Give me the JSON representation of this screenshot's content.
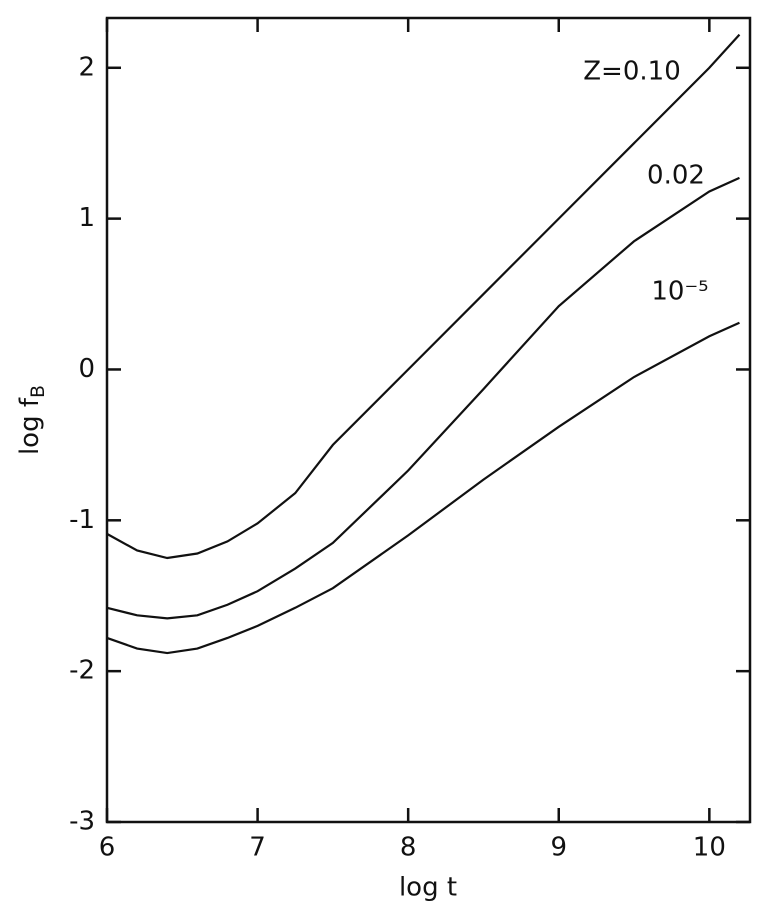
{
  "chart_data": {
    "type": "line",
    "x_label": "log t",
    "y_label": "log fB",
    "x": [
      6,
      6.2,
      6.4,
      6.6,
      6.8,
      7,
      7.25,
      7.5,
      8,
      8.5,
      9,
      9.5,
      10,
      10.2
    ],
    "series": [
      {
        "name": "Z=0.10",
        "color": "#111111",
        "values": [
          -1.09,
          -1.2,
          -1.25,
          -1.22,
          -1.14,
          -1.02,
          -0.82,
          -0.5,
          0.0,
          0.5,
          1.0,
          1.5,
          2.0,
          2.22
        ]
      },
      {
        "name": "0.02",
        "color": "#111111",
        "values": [
          -1.58,
          -1.63,
          -1.65,
          -1.63,
          -1.56,
          -1.47,
          -1.32,
          -1.15,
          -0.67,
          -0.13,
          0.42,
          0.85,
          1.18,
          1.27
        ]
      },
      {
        "name": "10⁻⁵",
        "color": "#111111",
        "values": [
          -1.78,
          -1.85,
          -1.88,
          -1.85,
          -1.78,
          -1.7,
          -1.58,
          -1.45,
          -1.1,
          -0.73,
          -0.38,
          -0.05,
          0.22,
          0.31
        ]
      }
    ],
    "xlim": [
      6,
      10.27
    ],
    "ylim": [
      -3,
      2.33
    ],
    "xticks": [
      6,
      7,
      8,
      9,
      10
    ],
    "yticks": [
      -3,
      -2,
      -1,
      0,
      1,
      2
    ],
    "grid": false
  }
}
